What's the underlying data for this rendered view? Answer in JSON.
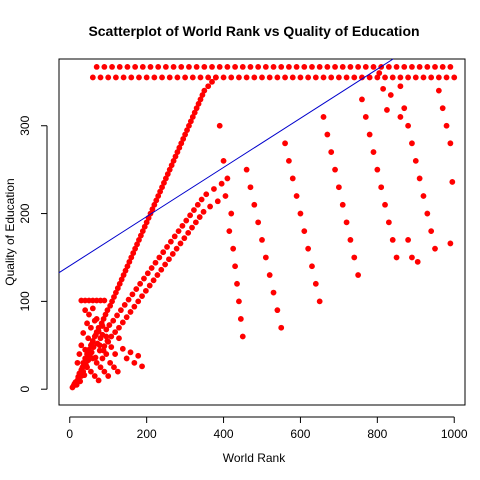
{
  "chart_data": {
    "type": "scatter",
    "title": "Scatterplot of World Rank vs Quality of Education",
    "xlabel": "World Rank",
    "ylabel": "Quality of Education",
    "xlim": [
      -28,
      1028
    ],
    "ylim": [
      -18,
      376
    ],
    "x_ticks": [
      0,
      200,
      400,
      600,
      800,
      1000
    ],
    "y_ticks": [
      0,
      100,
      200,
      300
    ],
    "grid": false,
    "legend": "none",
    "point_color": "#ff0000",
    "fit_line": {
      "intercept": 140.5,
      "slope": 0.28,
      "color": "#0000cc"
    },
    "points": [
      [
        7,
        2
      ],
      [
        10,
        4
      ],
      [
        12,
        6
      ],
      [
        15,
        8
      ],
      [
        18,
        5
      ],
      [
        20,
        10
      ],
      [
        22,
        14
      ],
      [
        25,
        18
      ],
      [
        27,
        9
      ],
      [
        30,
        22
      ],
      [
        33,
        25
      ],
      [
        35,
        30
      ],
      [
        38,
        16
      ],
      [
        40,
        35
      ],
      [
        42,
        28
      ],
      [
        45,
        40
      ],
      [
        48,
        33
      ],
      [
        50,
        45
      ],
      [
        52,
        38
      ],
      [
        55,
        50
      ],
      [
        57,
        42
      ],
      [
        60,
        55
      ],
      [
        62,
        48
      ],
      [
        65,
        60
      ],
      [
        67,
        36
      ],
      [
        70,
        65
      ],
      [
        72,
        52
      ],
      [
        75,
        70
      ],
      [
        78,
        44
      ],
      [
        80,
        58
      ],
      [
        83,
        75
      ],
      [
        85,
        62
      ],
      [
        88,
        80
      ],
      [
        90,
        49
      ],
      [
        93,
        85
      ],
      [
        95,
        68
      ],
      [
        98,
        90
      ],
      [
        100,
        54
      ],
      [
        103,
        73
      ],
      [
        105,
        95
      ],
      [
        108,
        60
      ],
      [
        110,
        100
      ],
      [
        113,
        78
      ],
      [
        115,
        105
      ],
      [
        118,
        65
      ],
      [
        120,
        110
      ],
      [
        123,
        84
      ],
      [
        125,
        115
      ],
      [
        128,
        70
      ],
      [
        130,
        120
      ],
      [
        133,
        90
      ],
      [
        135,
        125
      ],
      [
        138,
        76
      ],
      [
        140,
        130
      ],
      [
        143,
        96
      ],
      [
        145,
        135
      ],
      [
        148,
        82
      ],
      [
        150,
        140
      ],
      [
        153,
        102
      ],
      [
        155,
        145
      ],
      [
        158,
        88
      ],
      [
        160,
        150
      ],
      [
        163,
        108
      ],
      [
        165,
        155
      ],
      [
        168,
        94
      ],
      [
        170,
        160
      ],
      [
        173,
        114
      ],
      [
        175,
        165
      ],
      [
        178,
        100
      ],
      [
        180,
        170
      ],
      [
        183,
        120
      ],
      [
        185,
        175
      ],
      [
        188,
        106
      ],
      [
        190,
        180
      ],
      [
        193,
        126
      ],
      [
        195,
        185
      ],
      [
        198,
        112
      ],
      [
        200,
        190
      ],
      [
        203,
        132
      ],
      [
        205,
        195
      ],
      [
        208,
        118
      ],
      [
        210,
        200
      ],
      [
        213,
        138
      ],
      [
        215,
        205
      ],
      [
        218,
        124
      ],
      [
        220,
        210
      ],
      [
        223,
        144
      ],
      [
        225,
        215
      ],
      [
        228,
        130
      ],
      [
        230,
        220
      ],
      [
        233,
        150
      ],
      [
        235,
        225
      ],
      [
        238,
        136
      ],
      [
        240,
        230
      ],
      [
        243,
        156
      ],
      [
        245,
        235
      ],
      [
        248,
        142
      ],
      [
        250,
        240
      ],
      [
        253,
        162
      ],
      [
        255,
        245
      ],
      [
        258,
        148
      ],
      [
        260,
        250
      ],
      [
        263,
        168
      ],
      [
        265,
        255
      ],
      [
        268,
        154
      ],
      [
        270,
        260
      ],
      [
        273,
        174
      ],
      [
        275,
        265
      ],
      [
        278,
        160
      ],
      [
        280,
        270
      ],
      [
        283,
        180
      ],
      [
        285,
        275
      ],
      [
        288,
        166
      ],
      [
        290,
        280
      ],
      [
        293,
        186
      ],
      [
        295,
        285
      ],
      [
        298,
        172
      ],
      [
        300,
        290
      ],
      [
        303,
        192
      ],
      [
        305,
        295
      ],
      [
        308,
        178
      ],
      [
        310,
        300
      ],
      [
        313,
        198
      ],
      [
        315,
        305
      ],
      [
        318,
        184
      ],
      [
        320,
        310
      ],
      [
        323,
        204
      ],
      [
        325,
        315
      ],
      [
        328,
        190
      ],
      [
        330,
        320
      ],
      [
        333,
        210
      ],
      [
        335,
        325
      ],
      [
        338,
        196
      ],
      [
        340,
        330
      ],
      [
        343,
        216
      ],
      [
        345,
        335
      ],
      [
        348,
        202
      ],
      [
        350,
        340
      ],
      [
        355,
        222
      ],
      [
        360,
        345
      ],
      [
        365,
        208
      ],
      [
        370,
        350
      ],
      [
        375,
        228
      ],
      [
        380,
        355
      ],
      [
        385,
        214
      ],
      [
        390,
        300
      ],
      [
        395,
        234
      ],
      [
        400,
        260
      ],
      [
        405,
        220
      ],
      [
        410,
        240
      ],
      [
        415,
        180
      ],
      [
        420,
        200
      ],
      [
        425,
        160
      ],
      [
        430,
        140
      ],
      [
        435,
        120
      ],
      [
        440,
        100
      ],
      [
        445,
        80
      ],
      [
        450,
        60
      ],
      [
        460,
        250
      ],
      [
        470,
        230
      ],
      [
        480,
        210
      ],
      [
        490,
        190
      ],
      [
        500,
        170
      ],
      [
        510,
        150
      ],
      [
        520,
        130
      ],
      [
        530,
        110
      ],
      [
        540,
        90
      ],
      [
        550,
        70
      ],
      [
        560,
        280
      ],
      [
        570,
        260
      ],
      [
        580,
        240
      ],
      [
        590,
        220
      ],
      [
        600,
        200
      ],
      [
        610,
        180
      ],
      [
        620,
        160
      ],
      [
        630,
        140
      ],
      [
        640,
        120
      ],
      [
        650,
        100
      ],
      [
        660,
        310
      ],
      [
        670,
        290
      ],
      [
        680,
        270
      ],
      [
        690,
        250
      ],
      [
        700,
        230
      ],
      [
        710,
        210
      ],
      [
        720,
        190
      ],
      [
        730,
        170
      ],
      [
        740,
        150
      ],
      [
        750,
        130
      ],
      [
        760,
        330
      ],
      [
        770,
        310
      ],
      [
        780,
        290
      ],
      [
        790,
        270
      ],
      [
        800,
        250
      ],
      [
        810,
        230
      ],
      [
        820,
        210
      ],
      [
        830,
        190
      ],
      [
        840,
        170
      ],
      [
        850,
        150
      ],
      [
        860,
        345
      ],
      [
        870,
        320
      ],
      [
        880,
        300
      ],
      [
        890,
        280
      ],
      [
        900,
        260
      ],
      [
        910,
        240
      ],
      [
        920,
        220
      ],
      [
        930,
        200
      ],
      [
        940,
        180
      ],
      [
        950,
        160
      ],
      [
        960,
        340
      ],
      [
        970,
        320
      ],
      [
        980,
        300
      ],
      [
        990,
        280
      ],
      [
        995,
        236
      ],
      [
        990,
        166
      ],
      [
        905,
        145
      ],
      [
        890,
        150
      ],
      [
        880,
        170
      ],
      [
        860,
        310
      ],
      [
        835,
        335
      ],
      [
        825,
        318
      ],
      [
        815,
        342
      ],
      [
        805,
        360
      ],
      [
        60,
        355
      ],
      [
        80,
        355
      ],
      [
        100,
        355
      ],
      [
        120,
        355
      ],
      [
        140,
        355
      ],
      [
        160,
        355
      ],
      [
        180,
        355
      ],
      [
        200,
        355
      ],
      [
        220,
        355
      ],
      [
        240,
        355
      ],
      [
        260,
        355
      ],
      [
        280,
        355
      ],
      [
        300,
        355
      ],
      [
        320,
        355
      ],
      [
        340,
        355
      ],
      [
        360,
        355
      ],
      [
        380,
        355
      ],
      [
        400,
        355
      ],
      [
        420,
        355
      ],
      [
        440,
        355
      ],
      [
        460,
        355
      ],
      [
        480,
        355
      ],
      [
        500,
        355
      ],
      [
        520,
        355
      ],
      [
        540,
        355
      ],
      [
        560,
        355
      ],
      [
        580,
        355
      ],
      [
        600,
        355
      ],
      [
        620,
        355
      ],
      [
        640,
        355
      ],
      [
        660,
        355
      ],
      [
        680,
        355
      ],
      [
        700,
        355
      ],
      [
        720,
        355
      ],
      [
        740,
        355
      ],
      [
        760,
        355
      ],
      [
        780,
        355
      ],
      [
        800,
        355
      ],
      [
        820,
        355
      ],
      [
        840,
        355
      ],
      [
        860,
        355
      ],
      [
        880,
        355
      ],
      [
        900,
        355
      ],
      [
        920,
        355
      ],
      [
        940,
        355
      ],
      [
        960,
        355
      ],
      [
        980,
        355
      ],
      [
        1000,
        355
      ],
      [
        70,
        367
      ],
      [
        90,
        367
      ],
      [
        110,
        367
      ],
      [
        130,
        367
      ],
      [
        150,
        367
      ],
      [
        170,
        367
      ],
      [
        190,
        367
      ],
      [
        210,
        367
      ],
      [
        230,
        367
      ],
      [
        250,
        367
      ],
      [
        270,
        367
      ],
      [
        290,
        367
      ],
      [
        310,
        367
      ],
      [
        330,
        367
      ],
      [
        350,
        367
      ],
      [
        370,
        367
      ],
      [
        390,
        367
      ],
      [
        410,
        367
      ],
      [
        430,
        367
      ],
      [
        450,
        367
      ],
      [
        470,
        367
      ],
      [
        490,
        367
      ],
      [
        510,
        367
      ],
      [
        530,
        367
      ],
      [
        550,
        367
      ],
      [
        570,
        367
      ],
      [
        590,
        367
      ],
      [
        610,
        367
      ],
      [
        630,
        367
      ],
      [
        650,
        367
      ],
      [
        670,
        367
      ],
      [
        690,
        367
      ],
      [
        710,
        367
      ],
      [
        730,
        367
      ],
      [
        750,
        367
      ],
      [
        770,
        367
      ],
      [
        790,
        367
      ],
      [
        810,
        367
      ],
      [
        830,
        367
      ],
      [
        850,
        367
      ],
      [
        870,
        367
      ],
      [
        890,
        367
      ],
      [
        910,
        367
      ],
      [
        930,
        367
      ],
      [
        950,
        367
      ],
      [
        970,
        367
      ],
      [
        990,
        367
      ],
      [
        30,
        101
      ],
      [
        40,
        101
      ],
      [
        50,
        101
      ],
      [
        60,
        101
      ],
      [
        70,
        101
      ],
      [
        80,
        101
      ],
      [
        90,
        101
      ],
      [
        40,
        90
      ],
      [
        50,
        85
      ],
      [
        60,
        92
      ],
      [
        70,
        80
      ],
      [
        45,
        75
      ],
      [
        55,
        70
      ],
      [
        65,
        78
      ],
      [
        75,
        66
      ],
      [
        85,
        72
      ],
      [
        95,
        60
      ],
      [
        35,
        64
      ],
      [
        48,
        58
      ],
      [
        58,
        52
      ],
      [
        68,
        62
      ],
      [
        78,
        50
      ],
      [
        88,
        44
      ],
      [
        98,
        55
      ],
      [
        108,
        48
      ],
      [
        118,
        40
      ],
      [
        128,
        58
      ],
      [
        138,
        46
      ],
      [
        148,
        35
      ],
      [
        158,
        42
      ],
      [
        168,
        30
      ],
      [
        178,
        38
      ],
      [
        188,
        26
      ],
      [
        30,
        50
      ],
      [
        40,
        45
      ],
      [
        50,
        40
      ],
      [
        60,
        35
      ],
      [
        70,
        30
      ],
      [
        80,
        25
      ],
      [
        90,
        20
      ],
      [
        100,
        15
      ],
      [
        20,
        30
      ],
      [
        25,
        40
      ],
      [
        30,
        15
      ],
      [
        35,
        20
      ],
      [
        45,
        25
      ],
      [
        55,
        20
      ],
      [
        65,
        15
      ],
      [
        75,
        10
      ],
      [
        85,
        35
      ],
      [
        95,
        40
      ],
      [
        105,
        30
      ],
      [
        115,
        25
      ],
      [
        125,
        20
      ]
    ]
  }
}
